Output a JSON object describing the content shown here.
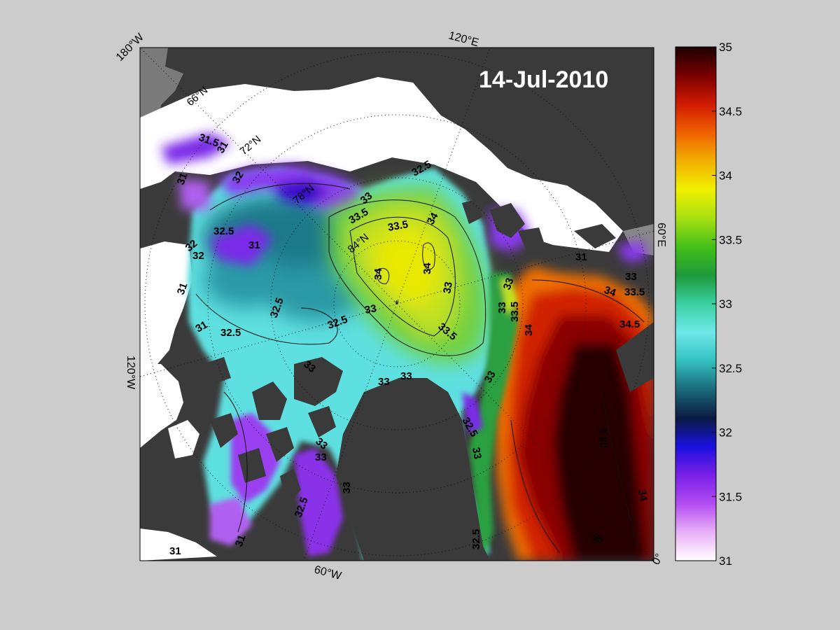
{
  "date": "14-Jul-2010",
  "longitude_labels": [
    "180°W",
    "120°E",
    "60°E",
    "0°",
    "60°W",
    "120°W"
  ],
  "latitude_labels": [
    "66°N",
    "72°N",
    "78°N",
    "84°N"
  ],
  "colorbar": {
    "min": 31,
    "max": 35,
    "ticks": [
      "35",
      "34.5",
      "34",
      "33.5",
      "33",
      "32.5",
      "32",
      "31.5",
      "31"
    ],
    "colors": [
      "#ffffff",
      "#e8b0f5",
      "#b24cf2",
      "#7a1fe8",
      "#1a10e0",
      "#0a1a40",
      "#1a6a7a",
      "#34c0c0",
      "#6ee8e8",
      "#3ad0a0",
      "#1e9a3a",
      "#44c018",
      "#a8e010",
      "#f0f000",
      "#f0b000",
      "#f06000",
      "#d01a00",
      "#7a0000",
      "#1a0000"
    ]
  },
  "contour_labels": [
    {
      "text": "31.5"
    },
    {
      "text": "31"
    },
    {
      "text": "31"
    },
    {
      "text": "32.5"
    },
    {
      "text": "32"
    },
    {
      "text": "31"
    },
    {
      "text": "31"
    },
    {
      "text": "32.5"
    },
    {
      "text": "32.5"
    },
    {
      "text": "32.5"
    },
    {
      "text": "32"
    },
    {
      "text": "33"
    },
    {
      "text": "33.5"
    },
    {
      "text": "33.5"
    },
    {
      "text": "34"
    },
    {
      "text": "34"
    },
    {
      "text": "34"
    },
    {
      "text": "33"
    },
    {
      "text": "33.5"
    },
    {
      "text": "33"
    },
    {
      "text": "32.5"
    },
    {
      "text": "33"
    },
    {
      "text": "33"
    },
    {
      "text": "33"
    },
    {
      "text": "33"
    },
    {
      "text": "33"
    },
    {
      "text": "33.5"
    },
    {
      "text": "34"
    },
    {
      "text": "34"
    },
    {
      "text": "33"
    },
    {
      "text": "33.5"
    },
    {
      "text": "34.5"
    },
    {
      "text": "31"
    },
    {
      "text": "33"
    },
    {
      "text": "32.5"
    },
    {
      "text": "33"
    },
    {
      "text": "33.5"
    },
    {
      "text": "34"
    },
    {
      "text": "35"
    },
    {
      "text": "33"
    },
    {
      "text": "33"
    },
    {
      "text": "32.5"
    },
    {
      "text": "33"
    },
    {
      "text": "32.5"
    },
    {
      "text": "31"
    },
    {
      "text": "31"
    },
    {
      "text": "32"
    },
    {
      "text": "31"
    }
  ]
}
